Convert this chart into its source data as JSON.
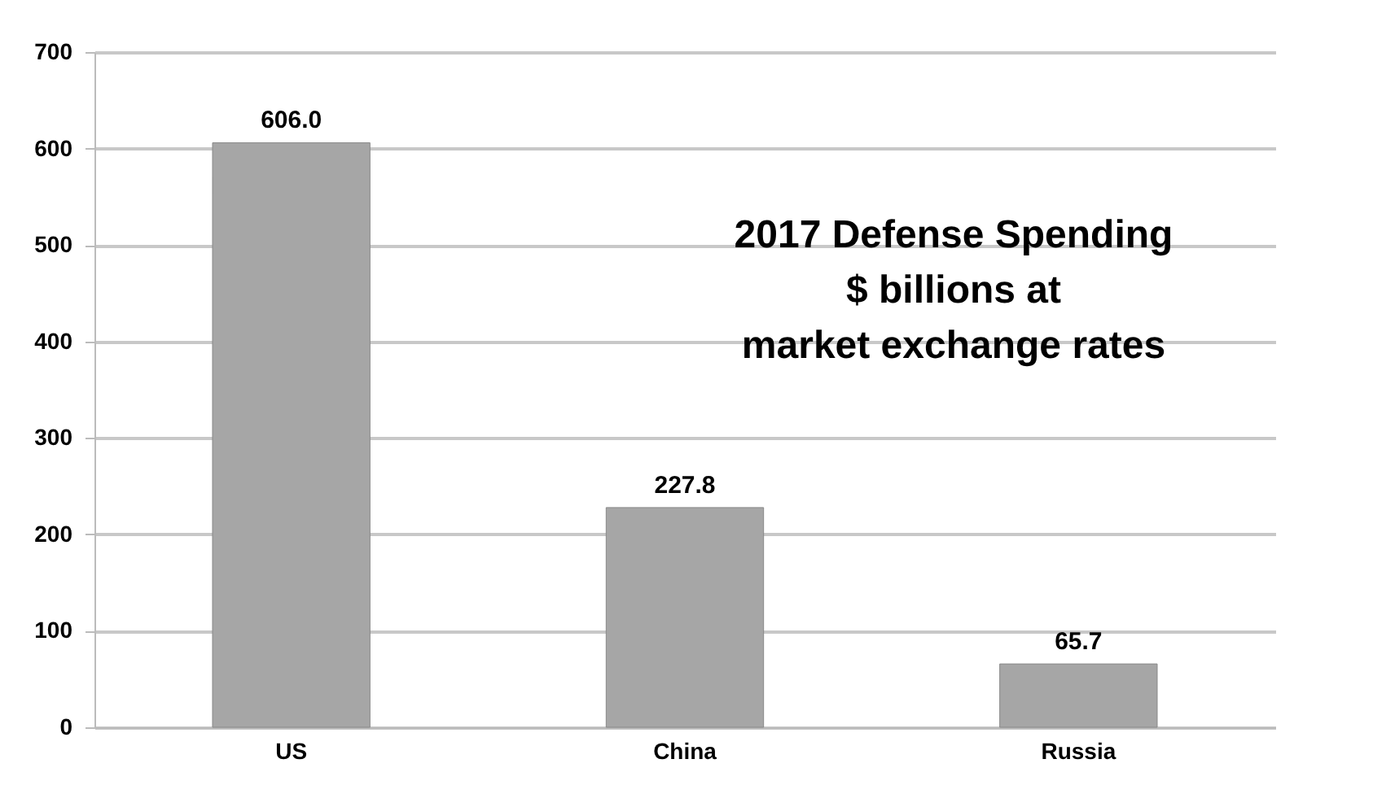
{
  "chart_data": {
    "type": "bar",
    "title": "2017 Defense Spending\n$ billions at\nmarket exchange rates",
    "categories": [
      "US",
      "China",
      "Russia"
    ],
    "values": [
      606.0,
      227.8,
      65.7
    ],
    "value_labels": [
      "606.0",
      "227.8",
      "65.7"
    ],
    "color": "#a6a6a6",
    "ylim": [
      0,
      700
    ],
    "yticks": [
      0,
      100,
      200,
      300,
      400,
      500,
      600,
      700
    ],
    "grid": "y"
  }
}
